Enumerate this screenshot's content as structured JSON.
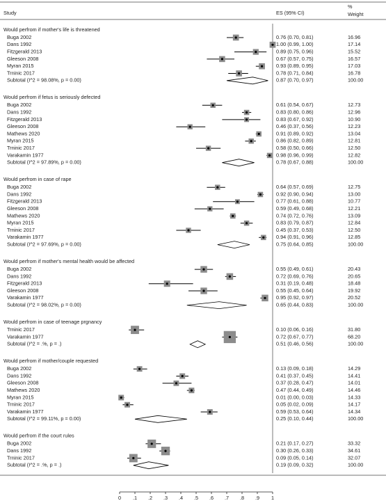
{
  "chart_data": {
    "type": "forest",
    "columns": {
      "study": "Study",
      "es": "ES (95% CI)",
      "pct": "%",
      "weight": "Weight"
    },
    "xlim": [
      0,
      1
    ],
    "xticks": [
      0,
      {
        "value": 0.1,
        "label": ".1"
      },
      {
        "value": 0.2,
        "label": ".2"
      },
      {
        "value": 0.3,
        "label": ".3"
      },
      {
        "value": 0.4,
        "label": ".4"
      },
      {
        "value": 0.5,
        "label": ".5"
      },
      {
        "value": 0.6,
        "label": ".6"
      },
      {
        "value": 0.7,
        "label": ".7"
      },
      {
        "value": 0.8,
        "label": ".8"
      },
      {
        "value": 0.9,
        "label": ".9"
      },
      1
    ],
    "box_color": "#8c8c8c",
    "groups": [
      {
        "title": "Would perfrom if mother's life is threatened",
        "studies": [
          {
            "name": "Buga 2002",
            "es": 0.76,
            "lo": 0.7,
            "hi": 0.81,
            "ci": "0.76 (0.70, 0.81)",
            "weight": 16.96,
            "weight_label": "16.96"
          },
          {
            "name": "Dans 1992",
            "es": 1.0,
            "lo": 0.99,
            "hi": 1.0,
            "ci": "1.00 (0.99, 1.00)",
            "weight": 17.14,
            "weight_label": "17.14"
          },
          {
            "name": "Fitzgerald 2013",
            "es": 0.89,
            "lo": 0.75,
            "hi": 0.96,
            "ci": "0.89 (0.75, 0.96)",
            "weight": 15.52,
            "weight_label": "15.52"
          },
          {
            "name": "Gleeson 2008",
            "es": 0.67,
            "lo": 0.57,
            "hi": 0.75,
            "ci": "0.67 (0.57, 0.75)",
            "weight": 16.57,
            "weight_label": "16.57"
          },
          {
            "name": "Myran 2015",
            "es": 0.93,
            "lo": 0.89,
            "hi": 0.95,
            "ci": "0.93 (0.89, 0.95)",
            "weight": 17.03,
            "weight_label": "17.03"
          },
          {
            "name": "Trninic 2017",
            "es": 0.78,
            "lo": 0.71,
            "hi": 0.84,
            "ci": "0.78 (0.71, 0.84)",
            "weight": 16.78,
            "weight_label": "16.78"
          }
        ],
        "subtotal": {
          "label": "Subtotal  (I^2 = 98.08%, p = 0.00)",
          "es": 0.87,
          "lo": 0.7,
          "hi": 0.97,
          "ci": "0.87 (0.70, 0.97)",
          "weight_label": "100.00"
        }
      },
      {
        "title": "Would perfrom if fetus is seriously defected",
        "studies": [
          {
            "name": "Buga 2002",
            "es": 0.61,
            "lo": 0.54,
            "hi": 0.67,
            "ci": "0.61 (0.54, 0.67)",
            "weight": 12.73,
            "weight_label": "12.73"
          },
          {
            "name": "Dans 1992",
            "es": 0.83,
            "lo": 0.8,
            "hi": 0.86,
            "ci": "0.83 (0.80, 0.86)",
            "weight": 12.96,
            "weight_label": "12.96"
          },
          {
            "name": "Fitzgerald 2013",
            "es": 0.83,
            "lo": 0.67,
            "hi": 0.92,
            "ci": "0.83 (0.67, 0.92)",
            "weight": 10.9,
            "weight_label": "10.90"
          },
          {
            "name": "Gleeson 2008",
            "es": 0.46,
            "lo": 0.37,
            "hi": 0.56,
            "ci": "0.46 (0.37, 0.56)",
            "weight": 12.23,
            "weight_label": "12.23"
          },
          {
            "name": "Mathews 2020",
            "es": 0.91,
            "lo": 0.89,
            "hi": 0.92,
            "ci": "0.91 (0.89, 0.92)",
            "weight": 13.04,
            "weight_label": "13.04"
          },
          {
            "name": "Myran 2015",
            "es": 0.86,
            "lo": 0.82,
            "hi": 0.89,
            "ci": "0.86 (0.82, 0.89)",
            "weight": 12.81,
            "weight_label": "12.81"
          },
          {
            "name": "Trninic 2017",
            "es": 0.58,
            "lo": 0.5,
            "hi": 0.66,
            "ci": "0.58 (0.50, 0.66)",
            "weight": 12.5,
            "weight_label": "12.50"
          },
          {
            "name": "Varakamin 1977",
            "es": 0.98,
            "lo": 0.96,
            "hi": 0.99,
            "ci": "0.98 (0.96, 0.99)",
            "weight": 12.82,
            "weight_label": "12.82"
          }
        ],
        "subtotal": {
          "label": "Subtotal  (I^2 = 97.89%, p = 0.00)",
          "es": 0.78,
          "lo": 0.67,
          "hi": 0.88,
          "ci": "0.78 (0.67, 0.88)",
          "weight_label": "100.00"
        }
      },
      {
        "title": "Would perfrom in case of rape",
        "studies": [
          {
            "name": "Buga 2002",
            "es": 0.64,
            "lo": 0.57,
            "hi": 0.69,
            "ci": "0.64 (0.57, 0.69)",
            "weight": 12.75,
            "weight_label": "12.75"
          },
          {
            "name": "Dans 1992",
            "es": 0.92,
            "lo": 0.9,
            "hi": 0.94,
            "ci": "0.92 (0.90, 0.94)",
            "weight": 13.0,
            "weight_label": "13.00"
          },
          {
            "name": "Fitzgerald 2013",
            "es": 0.77,
            "lo": 0.61,
            "hi": 0.88,
            "ci": "0.77 (0.61, 0.88)",
            "weight": 10.77,
            "weight_label": "10.77"
          },
          {
            "name": "Gleeson 2008",
            "es": 0.59,
            "lo": 0.49,
            "hi": 0.68,
            "ci": "0.59 (0.49, 0.68)",
            "weight": 12.21,
            "weight_label": "12.21"
          },
          {
            "name": "Mathews 2020",
            "es": 0.74,
            "lo": 0.72,
            "hi": 0.76,
            "ci": "0.74 (0.72, 0.76)",
            "weight": 13.09,
            "weight_label": "13.09"
          },
          {
            "name": "Myran 2015",
            "es": 0.83,
            "lo": 0.79,
            "hi": 0.87,
            "ci": "0.83 (0.79, 0.87)",
            "weight": 12.84,
            "weight_label": "12.84"
          },
          {
            "name": "Trninic 2017",
            "es": 0.45,
            "lo": 0.37,
            "hi": 0.53,
            "ci": "0.45 (0.37, 0.53)",
            "weight": 12.5,
            "weight_label": "12.50"
          },
          {
            "name": "Varakamin 1977",
            "es": 0.94,
            "lo": 0.91,
            "hi": 0.96,
            "ci": "0.94 (0.91, 0.96)",
            "weight": 12.85,
            "weight_label": "12.85"
          }
        ],
        "subtotal": {
          "label": "Subtotal  (I^2 = 97.69%, p = 0.00)",
          "es": 0.75,
          "lo": 0.64,
          "hi": 0.85,
          "ci": "0.75 (0.64, 0.85)",
          "weight_label": "100.00"
        }
      },
      {
        "title": "Would perfrom if mother's mental health would be affected",
        "studies": [
          {
            "name": "Buga 2002",
            "es": 0.55,
            "lo": 0.49,
            "hi": 0.61,
            "ci": "0.55 (0.49, 0.61)",
            "weight": 20.43,
            "weight_label": "20.43"
          },
          {
            "name": "Dans 1992",
            "es": 0.72,
            "lo": 0.69,
            "hi": 0.76,
            "ci": "0.72 (0.69, 0.76)",
            "weight": 20.65,
            "weight_label": "20.65"
          },
          {
            "name": "Fitzgerald 2013",
            "es": 0.31,
            "lo": 0.19,
            "hi": 0.48,
            "ci": "0.31 (0.19, 0.48)",
            "weight": 18.48,
            "weight_label": "18.48"
          },
          {
            "name": "Gleeson 2008",
            "es": 0.55,
            "lo": 0.45,
            "hi": 0.64,
            "ci": "0.55 (0.45, 0.64)",
            "weight": 19.92,
            "weight_label": "19.92"
          },
          {
            "name": "Varakamin 1977",
            "es": 0.95,
            "lo": 0.92,
            "hi": 0.97,
            "ci": "0.95 (0.92, 0.97)",
            "weight": 20.52,
            "weight_label": "20.52"
          }
        ],
        "subtotal": {
          "label": "Subtotal  (I^2 = 98.02%, p = 0.00)",
          "es": 0.65,
          "lo": 0.44,
          "hi": 0.83,
          "ci": "0.65 (0.44, 0.83)",
          "weight_label": "100.00"
        }
      },
      {
        "title": "Would perfrom in case of teenage prgnancy",
        "studies": [
          {
            "name": "Trninic 2017",
            "es": 0.1,
            "lo": 0.06,
            "hi": 0.16,
            "ci": "0.10 (0.06, 0.16)",
            "weight": 31.8,
            "weight_label": "31.80"
          },
          {
            "name": "Varakamin 1977",
            "es": 0.72,
            "lo": 0.67,
            "hi": 0.77,
            "ci": "0.72 (0.67, 0.77)",
            "weight": 68.2,
            "weight_label": "68.20"
          }
        ],
        "subtotal": {
          "label": "Subtotal  (I^2 = .%, p = .)",
          "es": 0.51,
          "lo": 0.46,
          "hi": 0.56,
          "ci": "0.51 (0.46, 0.56)",
          "weight_label": "100.00"
        }
      },
      {
        "title": "Would perfrom if mother/couple requested",
        "studies": [
          {
            "name": "Buga 2002",
            "es": 0.13,
            "lo": 0.09,
            "hi": 0.18,
            "ci": "0.13 (0.09, 0.18)",
            "weight": 14.29,
            "weight_label": "14.29"
          },
          {
            "name": "Dans 1992",
            "es": 0.41,
            "lo": 0.37,
            "hi": 0.45,
            "ci": "0.41 (0.37, 0.45)",
            "weight": 14.41,
            "weight_label": "14.41"
          },
          {
            "name": "Gleeson 2008",
            "es": 0.37,
            "lo": 0.28,
            "hi": 0.47,
            "ci": "0.37 (0.28, 0.47)",
            "weight": 14.01,
            "weight_label": "14.01"
          },
          {
            "name": "Mathews 2020",
            "es": 0.47,
            "lo": 0.44,
            "hi": 0.49,
            "ci": "0.47 (0.44, 0.49)",
            "weight": 14.46,
            "weight_label": "14.46"
          },
          {
            "name": "Myran 2015",
            "es": 0.01,
            "lo": 0.0,
            "hi": 0.03,
            "ci": "0.01 (0.00, 0.03)",
            "weight": 14.33,
            "weight_label": "14.33"
          },
          {
            "name": "Trninic 2017",
            "es": 0.05,
            "lo": 0.02,
            "hi": 0.09,
            "ci": "0.05 (0.02, 0.09)",
            "weight": 14.17,
            "weight_label": "14.17"
          },
          {
            "name": "Varakamin 1977",
            "es": 0.59,
            "lo": 0.53,
            "hi": 0.64,
            "ci": "0.59 (0.53, 0.64)",
            "weight": 14.34,
            "weight_label": "14.34"
          }
        ],
        "subtotal": {
          "label": "Subtotal  (I^2 = 99.11%, p = 0.00)",
          "es": 0.25,
          "lo": 0.1,
          "hi": 0.44,
          "ci": "0.25 (0.10, 0.44)",
          "weight_label": "100.00"
        }
      },
      {
        "title": "Would perfrom if the court rules",
        "studies": [
          {
            "name": "Buga 2002",
            "es": 0.21,
            "lo": 0.17,
            "hi": 0.27,
            "ci": "0.21 (0.17, 0.27)",
            "weight": 33.32,
            "weight_label": "33.32"
          },
          {
            "name": "Dans 1992",
            "es": 0.3,
            "lo": 0.26,
            "hi": 0.33,
            "ci": "0.30 (0.26, 0.33)",
            "weight": 34.61,
            "weight_label": "34.61"
          },
          {
            "name": "Trninic 2017",
            "es": 0.09,
            "lo": 0.05,
            "hi": 0.14,
            "ci": "0.09 (0.05, 0.14)",
            "weight": 32.07,
            "weight_label": "32.07"
          }
        ],
        "subtotal": {
          "label": "Subtotal  (I^2 = .%, p = .)",
          "es": 0.19,
          "lo": 0.09,
          "hi": 0.32,
          "ci": "0.19 (0.09, 0.32)",
          "weight_label": "100.00"
        }
      }
    ]
  }
}
